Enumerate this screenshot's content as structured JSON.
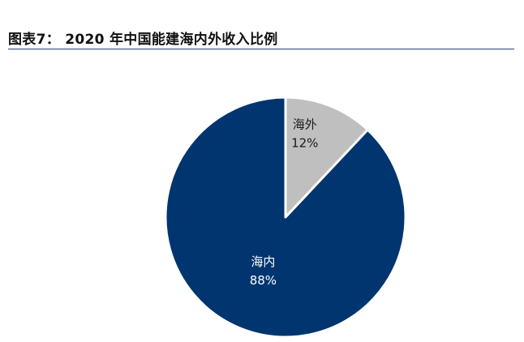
{
  "figure": {
    "title": "图表7：  2020 年中国能建海内外收入比例"
  },
  "chart_data": {
    "type": "pie",
    "categories": [
      "海外",
      "海内"
    ],
    "values": [
      12,
      88
    ],
    "value_labels": [
      "12%",
      "88%"
    ],
    "colors": [
      "#bfbfbf",
      "#00356f"
    ],
    "start": "12 o'clock",
    "direction": "clockwise",
    "legend": "none"
  }
}
